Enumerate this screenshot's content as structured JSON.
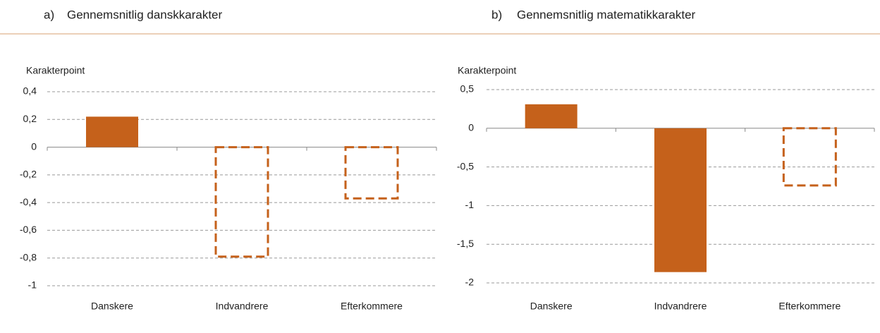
{
  "chart_data": [
    {
      "type": "bar",
      "label": "a)",
      "title": "Gennemsnitlig danskkarakter",
      "ylabel": "Karakterpoint",
      "categories": [
        "Danskere",
        "Indvandrere",
        "Efterkommere"
      ],
      "values": [
        0.22,
        -0.79,
        -0.37
      ],
      "bar_styles": [
        "solid",
        "dashed",
        "dashed"
      ],
      "color": "#c5611b",
      "ylim": [
        -1,
        0.4
      ],
      "yticks": [
        {
          "value": 0.4,
          "label": "0,4"
        },
        {
          "value": 0.2,
          "label": "0,2"
        },
        0,
        {
          "value": -0.2,
          "label": "-0,2"
        },
        {
          "value": -0.4,
          "label": "-0,4"
        },
        {
          "value": -0.6,
          "label": "-0,6"
        },
        {
          "value": -0.8,
          "label": "-0,8"
        },
        -1
      ],
      "grid": true
    },
    {
      "type": "bar",
      "label": "b)",
      "title": "Gennemsnitlig matematikkarakter",
      "ylabel": "Karakterpoint",
      "categories": [
        "Danskere",
        "Indvandrere",
        "Efterkommere"
      ],
      "values": [
        0.31,
        -1.86,
        -0.74
      ],
      "bar_styles": [
        "solid",
        "solid",
        "dashed"
      ],
      "color": "#c5611b",
      "ylim": [
        -2,
        0.5
      ],
      "yticks": [
        {
          "value": 0.5,
          "label": "0,5"
        },
        0,
        {
          "value": -0.5,
          "label": "-0,5"
        },
        -1,
        {
          "value": -1.5,
          "label": "-1,5"
        },
        -2
      ],
      "grid": true
    }
  ]
}
